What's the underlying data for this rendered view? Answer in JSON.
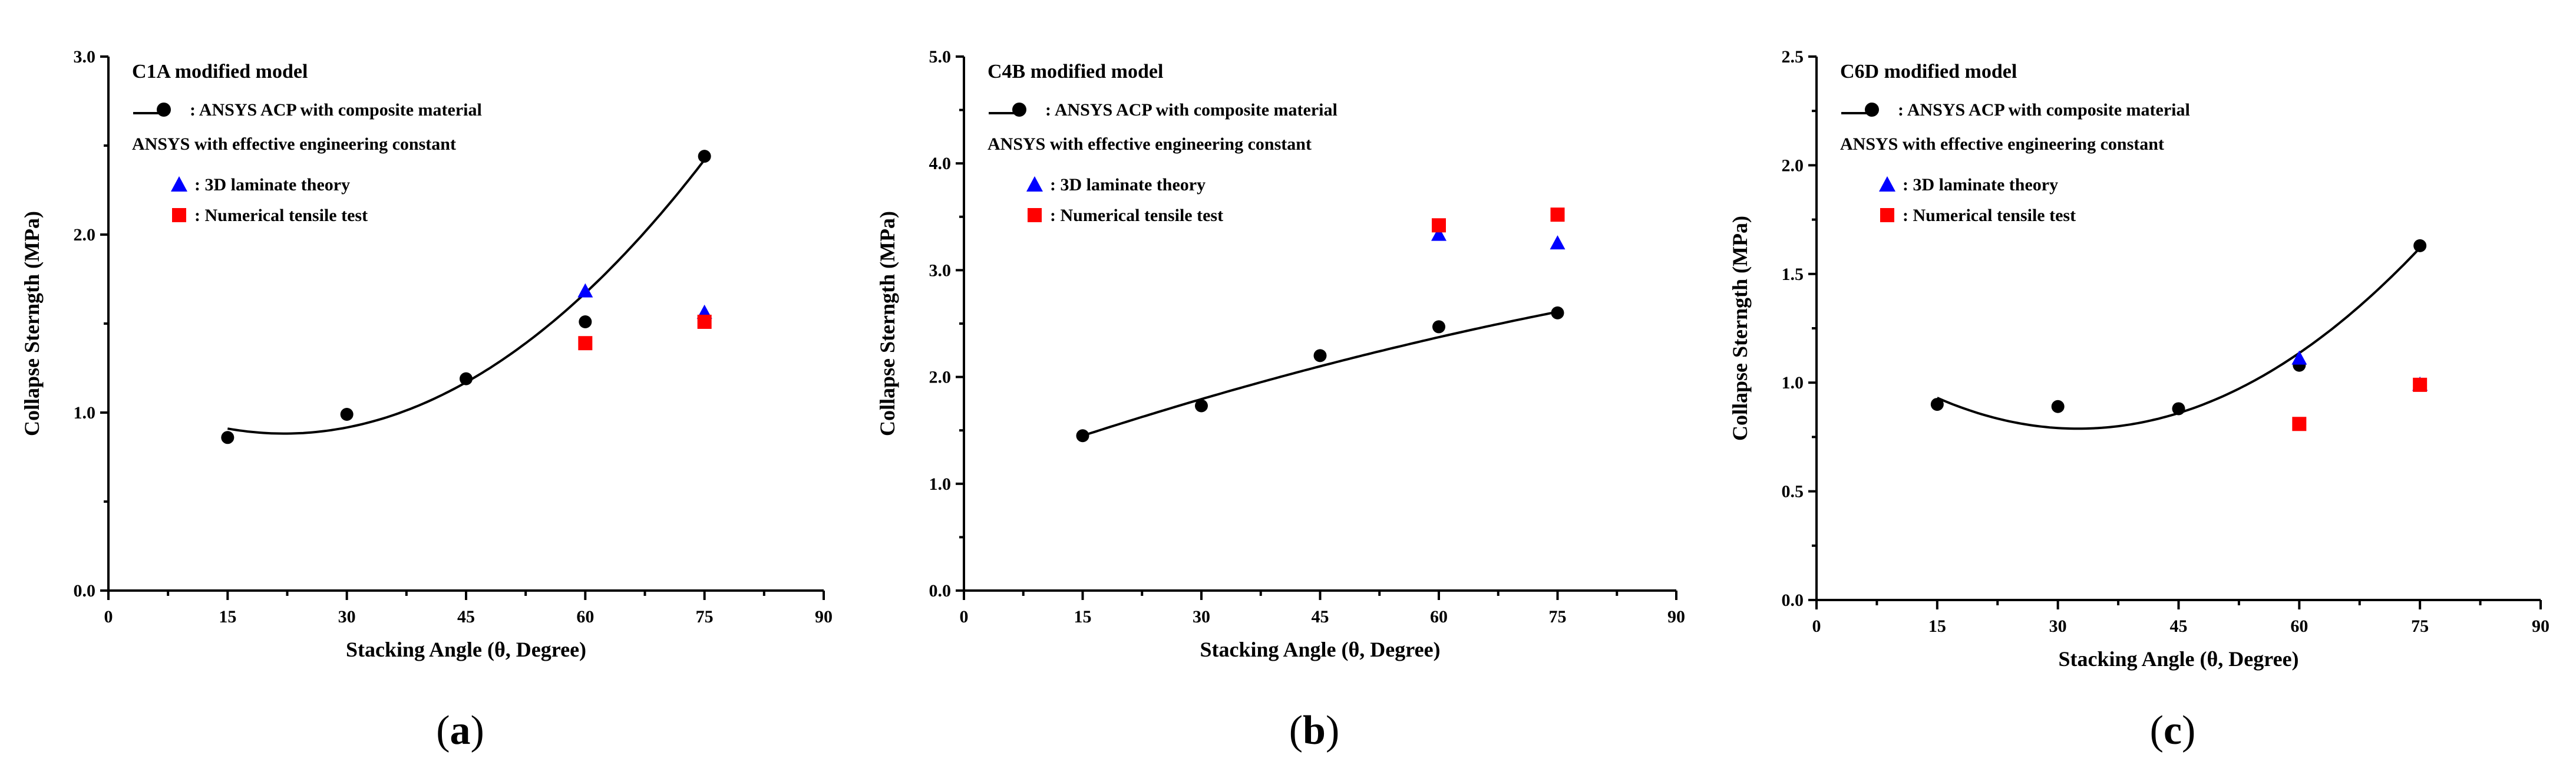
{
  "legend": {
    "acp_label": ": ANSYS ACP with composite material",
    "effective_header": "ANSYS with effective engineering constant",
    "laminate_label": ": 3D laminate theory",
    "tensile_label": ": Numerical tensile test"
  },
  "colors": {
    "acp": "#000000",
    "laminate": "#0000ff",
    "tensile": "#ff0000"
  },
  "chart_data": [
    {
      "type": "scatter",
      "panel_label": "(a)",
      "panel_letter": "a",
      "title": "C1A modified model",
      "xlabel": "Stacking Angle (θ, Degree)",
      "ylabel": "Collapse Sterngth (MPa)",
      "xlim": [
        0,
        90
      ],
      "ylim": [
        0,
        3.0
      ],
      "x_ticks": [
        0,
        15,
        30,
        45,
        60,
        75,
        90
      ],
      "y_ticks": [
        "0.0",
        "1.0",
        "2.0",
        "3.0"
      ],
      "y_tick_values": [
        0,
        1,
        2,
        3
      ],
      "series": [
        {
          "name": "ANSYS ACP with composite material",
          "marker": "circle",
          "x": [
            15,
            30,
            45,
            60,
            75
          ],
          "y": [
            0.86,
            0.99,
            1.19,
            1.51,
            2.44
          ]
        },
        {
          "name": "3D laminate theory",
          "marker": "triangle",
          "x": [
            60,
            75
          ],
          "y": [
            1.68,
            1.56
          ]
        },
        {
          "name": "Numerical tensile test",
          "marker": "square",
          "x": [
            60,
            75
          ],
          "y": [
            1.39,
            1.51
          ]
        }
      ],
      "fit": {
        "type": "quadratic",
        "x": [
          15,
          45,
          75
        ],
        "y": [
          0.91,
          1.17,
          2.42
        ]
      }
    },
    {
      "type": "scatter",
      "panel_label": "(b)",
      "panel_letter": "b",
      "title": "C4B modified model",
      "xlabel": "Stacking Angle (θ, Degree)",
      "ylabel": "Collapse Sterngth (MPa)",
      "xlim": [
        0,
        90
      ],
      "ylim": [
        0,
        5.0
      ],
      "x_ticks": [
        0,
        15,
        30,
        45,
        60,
        75,
        90
      ],
      "y_ticks": [
        "0.0",
        "1.0",
        "2.0",
        "3.0",
        "4.0",
        "5.0"
      ],
      "y_tick_values": [
        0,
        1,
        2,
        3,
        4,
        5
      ],
      "series": [
        {
          "name": "ANSYS ACP with composite material",
          "marker": "circle",
          "x": [
            15,
            30,
            45,
            60,
            75
          ],
          "y": [
            1.45,
            1.73,
            2.2,
            2.47,
            2.6
          ]
        },
        {
          "name": "3D laminate theory",
          "marker": "triangle",
          "x": [
            60,
            75
          ],
          "y": [
            3.33,
            3.25
          ]
        },
        {
          "name": "Numerical tensile test",
          "marker": "square",
          "x": [
            60,
            75
          ],
          "y": [
            3.42,
            3.52
          ]
        }
      ],
      "fit": {
        "type": "quadratic",
        "x": [
          15,
          45,
          75
        ],
        "y": [
          1.45,
          2.1,
          2.61
        ]
      }
    },
    {
      "type": "scatter",
      "panel_label": "(c)",
      "panel_letter": "c",
      "title": "C6D modified model",
      "xlabel": "Stacking Angle (θ, Degree)",
      "ylabel": "Collapse Sterngth (MPa)",
      "xlim": [
        0,
        90
      ],
      "ylim": [
        0,
        2.5
      ],
      "x_ticks": [
        0,
        15,
        30,
        45,
        60,
        75,
        90
      ],
      "y_ticks": [
        "0.0",
        "0.5",
        "1.0",
        "1.5",
        "2.0",
        "2.5"
      ],
      "y_tick_values": [
        0,
        0.5,
        1.0,
        1.5,
        2.0,
        2.5
      ],
      "series": [
        {
          "name": "ANSYS ACP with composite material",
          "marker": "circle",
          "x": [
            15,
            30,
            45,
            60,
            75
          ],
          "y": [
            0.9,
            0.89,
            0.88,
            1.08,
            1.63
          ]
        },
        {
          "name": "3D laminate theory",
          "marker": "triangle",
          "x": [
            60,
            75
          ],
          "y": [
            1.11,
            0.99
          ]
        },
        {
          "name": "Numerical tensile test",
          "marker": "square",
          "x": [
            60,
            75
          ],
          "y": [
            0.81,
            0.99
          ]
        }
      ],
      "fit": {
        "type": "quadratic",
        "x": [
          15,
          45,
          75
        ],
        "y": [
          0.93,
          0.86,
          1.62
        ]
      }
    }
  ]
}
